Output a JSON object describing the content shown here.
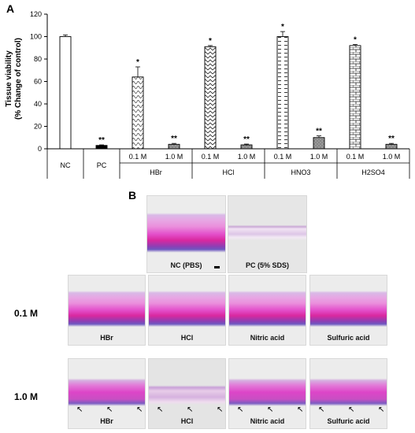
{
  "panel_a_letter": "A",
  "panel_b_letter": "B",
  "chart_data": {
    "type": "bar",
    "ylabel_line1": "Tissue viability",
    "ylabel_line2": "(% Change of control)",
    "ylim": [
      0,
      120
    ],
    "yticks": [
      0,
      20,
      40,
      60,
      80,
      100,
      120
    ],
    "bars": [
      {
        "label": "NC",
        "group": "",
        "value": 100,
        "error": 1.5,
        "sig": "",
        "pattern": "white"
      },
      {
        "label": "PC",
        "group": "",
        "value": 3,
        "error": 0.5,
        "sig": "**",
        "pattern": "black"
      },
      {
        "label": "0.1 M",
        "group": "HBr",
        "value": 64,
        "error": 9,
        "sig": "*",
        "pattern": "waves"
      },
      {
        "label": "1.0 M",
        "group": "HBr",
        "value": 4,
        "error": 0.8,
        "sig": "**",
        "pattern": "grey"
      },
      {
        "label": "0.1 M",
        "group": "HCl",
        "value": 91,
        "error": 1,
        "sig": "*",
        "pattern": "zigzag"
      },
      {
        "label": "1.0 M",
        "group": "HCl",
        "value": 3.5,
        "error": 0.7,
        "sig": "**",
        "pattern": "grey"
      },
      {
        "label": "0.1 M",
        "group": "HNO3",
        "value": 100,
        "error": 4.5,
        "sig": "*",
        "pattern": "dashes"
      },
      {
        "label": "1.0 M",
        "group": "HNO3",
        "value": 10,
        "error": 1.5,
        "sig": "**",
        "pattern": "grey"
      },
      {
        "label": "0.1 M",
        "group": "H2SO4",
        "value": 92,
        "error": 1,
        "sig": "*",
        "pattern": "bricks"
      },
      {
        "label": "1.0 M",
        "group": "H2SO4",
        "value": 4,
        "error": 0.8,
        "sig": "**",
        "pattern": "grey"
      }
    ],
    "groups": [
      "NC",
      "PC",
      "HBr",
      "HCl",
      "HNO3",
      "H2SO4"
    ]
  },
  "histology": {
    "scale_bar": true,
    "controls": [
      {
        "caption": "NC (PBS)",
        "style": "normal"
      },
      {
        "caption": "PC (5% SDS)",
        "style": "damaged"
      }
    ],
    "rows": [
      {
        "label": "0.1 M",
        "images": [
          {
            "caption": "HBr",
            "style": "normal"
          },
          {
            "caption": "HCl",
            "style": "normal"
          },
          {
            "caption": "Nitric acid",
            "style": "normal"
          },
          {
            "caption": "Sulfuric acid",
            "style": "normal"
          }
        ]
      },
      {
        "label": "1.0 M",
        "images": [
          {
            "caption": "HBr",
            "style": "thin"
          },
          {
            "caption": "HCl",
            "style": "pale"
          },
          {
            "caption": "Nitric acid",
            "style": "thin"
          },
          {
            "caption": "Sulfuric acid",
            "style": "thin"
          }
        ]
      }
    ]
  }
}
